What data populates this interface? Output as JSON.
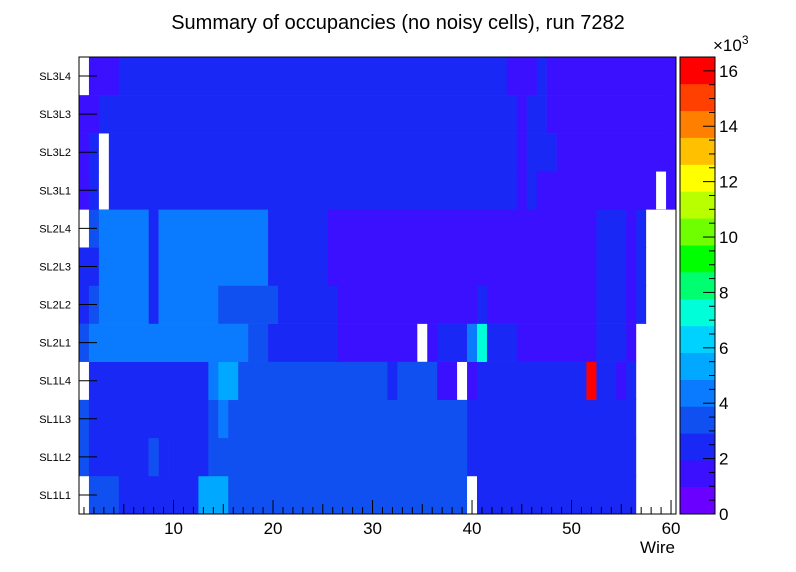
{
  "chart_data": {
    "type": "heatmap",
    "title": "Summary of occupancies (no noisy cells), run 7282",
    "xlabel": "Wire",
    "ylabel": "",
    "xlim": [
      0.5,
      60.5
    ],
    "x_ticks": [
      "10",
      "20",
      "30",
      "40",
      "50",
      "60"
    ],
    "x_tick_values": [
      10,
      20,
      30,
      40,
      50,
      60
    ],
    "rows": [
      "SL1L1",
      "SL1L2",
      "SL1L3",
      "SL1L4",
      "SL2L1",
      "SL2L2",
      "SL2L3",
      "SL2L4",
      "SL3L1",
      "SL3L2",
      "SL3L3",
      "SL3L4"
    ],
    "z_range": [
      0,
      16500
    ],
    "z_ticks": [
      "0",
      "2",
      "4",
      "6",
      "8",
      "10",
      "12",
      "14",
      "16"
    ],
    "z_tick_values": [
      0,
      2000,
      4000,
      6000,
      8000,
      10000,
      12000,
      14000,
      16000
    ],
    "z_multiplier": "×10",
    "z_multiplier_exp": "3",
    "palette": [
      "#6a00ff",
      "#3b10ff",
      "#1a28f5",
      "#1150f0",
      "#0a7aff",
      "#00a8ff",
      "#00d2ff",
      "#00ffd8",
      "#00ff70",
      "#00ff00",
      "#70ff00",
      "#baff00",
      "#ffff00",
      "#ffc000",
      "#ff8000",
      "#ff4000",
      "#ff0000"
    ],
    "segments": [
      [
        [
          1,
          1,
          -1
        ],
        [
          2,
          3,
          3500
        ],
        [
          4,
          4,
          3000
        ],
        [
          5,
          12,
          2500
        ],
        [
          13,
          15,
          5600
        ],
        [
          16,
          32,
          3000
        ],
        [
          33,
          34,
          3500
        ],
        [
          35,
          39,
          3000
        ],
        [
          40,
          40,
          -1
        ],
        [
          41,
          56,
          2300
        ],
        [
          57,
          60,
          -1
        ]
      ],
      [
        [
          1,
          1,
          3000
        ],
        [
          2,
          7,
          2800
        ],
        [
          8,
          8,
          3000
        ],
        [
          9,
          9,
          2500
        ],
        [
          10,
          13,
          2800
        ],
        [
          14,
          15,
          3500
        ],
        [
          16,
          33,
          3000
        ],
        [
          34,
          34,
          3500
        ],
        [
          35,
          39,
          3000
        ],
        [
          40,
          56,
          2300
        ],
        [
          57,
          60,
          -1
        ]
      ],
      [
        [
          1,
          1,
          3000
        ],
        [
          2,
          13,
          2800
        ],
        [
          14,
          14,
          3500
        ],
        [
          15,
          15,
          4000
        ],
        [
          16,
          39,
          3000
        ],
        [
          40,
          56,
          2300
        ],
        [
          57,
          60,
          -1
        ]
      ],
      [
        [
          1,
          1,
          -1
        ],
        [
          2,
          13,
          2800
        ],
        [
          14,
          14,
          4500
        ],
        [
          15,
          16,
          5200
        ],
        [
          17,
          31,
          3000
        ],
        [
          32,
          32,
          2300
        ],
        [
          33,
          36,
          3000
        ],
        [
          37,
          38,
          1000
        ],
        [
          39,
          39,
          -1
        ],
        [
          40,
          40,
          1000
        ],
        [
          41,
          51,
          2300
        ],
        [
          52,
          52,
          16000
        ],
        [
          53,
          54,
          2300
        ],
        [
          55,
          55,
          1000
        ],
        [
          56,
          56,
          2300
        ],
        [
          57,
          60,
          -1
        ]
      ],
      [
        [
          1,
          1,
          3500
        ],
        [
          2,
          2,
          4000
        ],
        [
          3,
          4,
          4500
        ],
        [
          5,
          10,
          3900
        ],
        [
          11,
          17,
          4500
        ],
        [
          18,
          19,
          3800
        ],
        [
          20,
          26,
          2300
        ],
        [
          27,
          34,
          1300
        ],
        [
          35,
          35,
          -1
        ],
        [
          36,
          36,
          1300
        ],
        [
          37,
          39,
          2300
        ],
        [
          40,
          40,
          4500
        ],
        [
          41,
          41,
          6800
        ],
        [
          42,
          44,
          2300
        ],
        [
          45,
          52,
          1300
        ],
        [
          53,
          55,
          2300
        ],
        [
          56,
          56,
          1300
        ],
        [
          57,
          60,
          -1
        ]
      ],
      [
        [
          1,
          1,
          2500
        ],
        [
          2,
          2,
          3000
        ],
        [
          3,
          7,
          3900
        ],
        [
          8,
          8,
          2500
        ],
        [
          9,
          11,
          3900
        ],
        [
          12,
          14,
          4500
        ],
        [
          15,
          20,
          3800
        ],
        [
          21,
          21,
          2300
        ],
        [
          22,
          26,
          2300
        ],
        [
          27,
          40,
          1300
        ],
        [
          41,
          41,
          2300
        ],
        [
          42,
          52,
          1300
        ],
        [
          53,
          55,
          2300
        ],
        [
          56,
          56,
          1300
        ],
        [
          57,
          57,
          2300
        ],
        [
          58,
          60,
          -1
        ]
      ],
      [
        [
          1,
          2,
          2500
        ],
        [
          3,
          7,
          3900
        ],
        [
          8,
          8,
          2500
        ],
        [
          9,
          19,
          3900
        ],
        [
          20,
          25,
          2300
        ],
        [
          26,
          52,
          1300
        ],
        [
          53,
          55,
          2300
        ],
        [
          56,
          56,
          1300
        ],
        [
          57,
          57,
          2300
        ],
        [
          58,
          60,
          -1
        ]
      ],
      [
        [
          1,
          1,
          -1
        ],
        [
          2,
          2,
          3000
        ],
        [
          3,
          7,
          3900
        ],
        [
          8,
          8,
          2500
        ],
        [
          9,
          19,
          3900
        ],
        [
          20,
          25,
          2300
        ],
        [
          26,
          52,
          1300
        ],
        [
          53,
          55,
          2300
        ],
        [
          56,
          56,
          1300
        ],
        [
          57,
          57,
          2300
        ],
        [
          58,
          60,
          -1
        ]
      ],
      [
        [
          1,
          1,
          1300
        ],
        [
          2,
          2,
          2500
        ],
        [
          3,
          3,
          -1
        ],
        [
          4,
          44,
          2300
        ],
        [
          45,
          45,
          1300
        ],
        [
          46,
          46,
          2300
        ],
        [
          47,
          60,
          1300
        ],
        [
          59,
          59,
          -1
        ]
      ],
      [
        [
          1,
          1,
          1300
        ],
        [
          2,
          2,
          2300
        ],
        [
          3,
          3,
          -1
        ],
        [
          4,
          44,
          2300
        ],
        [
          45,
          45,
          1300
        ],
        [
          46,
          48,
          2300
        ],
        [
          49,
          60,
          1300
        ]
      ],
      [
        [
          1,
          1,
          1300
        ],
        [
          2,
          2,
          1300
        ],
        [
          3,
          44,
          2300
        ],
        [
          45,
          45,
          1000
        ],
        [
          46,
          47,
          2300
        ],
        [
          48,
          60,
          1300
        ],
        [
          60,
          60,
          1000
        ]
      ],
      [
        [
          1,
          1,
          -1
        ],
        [
          2,
          4,
          1300
        ],
        [
          5,
          43,
          2300
        ],
        [
          44,
          46,
          1300
        ],
        [
          47,
          47,
          2300
        ],
        [
          48,
          60,
          1300
        ]
      ]
    ]
  }
}
